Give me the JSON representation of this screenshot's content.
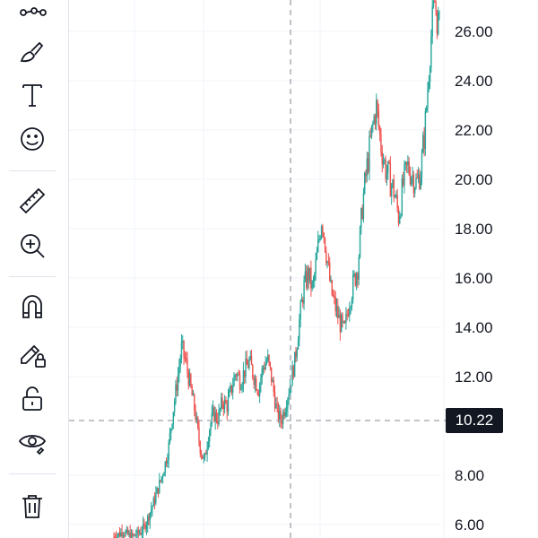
{
  "toolbar": {
    "tools": [
      {
        "name": "trend-line-tool",
        "icon": "points-line-icon"
      },
      {
        "name": "brush-tool",
        "icon": "brush-icon"
      },
      {
        "name": "text-tool",
        "icon": "text-icon"
      },
      {
        "name": "emoji-tool",
        "icon": "smiley-icon"
      },
      {
        "name": "ruler-tool",
        "icon": "ruler-icon"
      },
      {
        "name": "zoom-in-tool",
        "icon": "zoom-in-icon"
      },
      {
        "name": "magnet-tool",
        "icon": "magnet-icon"
      },
      {
        "name": "lock-drawings-tool",
        "icon": "pencil-lock-icon"
      },
      {
        "name": "unlock-tool",
        "icon": "unlock-icon"
      },
      {
        "name": "hide-drawings-tool",
        "icon": "eye-icon"
      },
      {
        "name": "delete-tool",
        "icon": "trash-icon"
      }
    ]
  },
  "price_axis": {
    "labels": [
      "26.00",
      "24.00",
      "22.00",
      "20.00",
      "18.00",
      "16.00",
      "14.00",
      "12.00",
      "8.00",
      "6.00"
    ]
  },
  "crosshair": {
    "price_label": "10.22",
    "price": 10.22
  },
  "colors": {
    "up": "#26a69a",
    "down": "#ef5350",
    "crosshair": "#9598a1",
    "grid": "#f0f3fa",
    "label_bg": "#131722"
  },
  "chart_data": {
    "type": "candlestick",
    "ylim": [
      5.4,
      27.2
    ],
    "price_path": [
      5.5,
      5.6,
      5.7,
      5.6,
      5.5,
      5.6,
      5.7,
      6.0,
      6.5,
      7.0,
      7.6,
      8.2,
      9.0,
      10.5,
      11.8,
      13.2,
      12.5,
      11.5,
      10.5,
      9.2,
      8.5,
      9.8,
      10.5,
      10.3,
      11.0,
      10.8,
      11.5,
      12.2,
      11.8,
      12.3,
      12.6,
      12.0,
      11.5,
      12.4,
      12.7,
      11.8,
      10.6,
      10.2,
      10.9,
      11.7,
      12.6,
      14.2,
      15.6,
      16.2,
      15.5,
      17.0,
      18.5,
      17.0,
      15.5,
      14.8,
      14.2,
      13.8,
      15.0,
      15.8,
      16.5,
      19.0,
      20.5,
      21.8,
      23.0,
      21.5,
      20.5,
      20.0,
      19.5,
      18.5,
      19.8,
      20.5,
      20.2,
      19.8,
      20.5,
      22.5,
      25.5,
      27.2,
      26.0
    ]
  }
}
